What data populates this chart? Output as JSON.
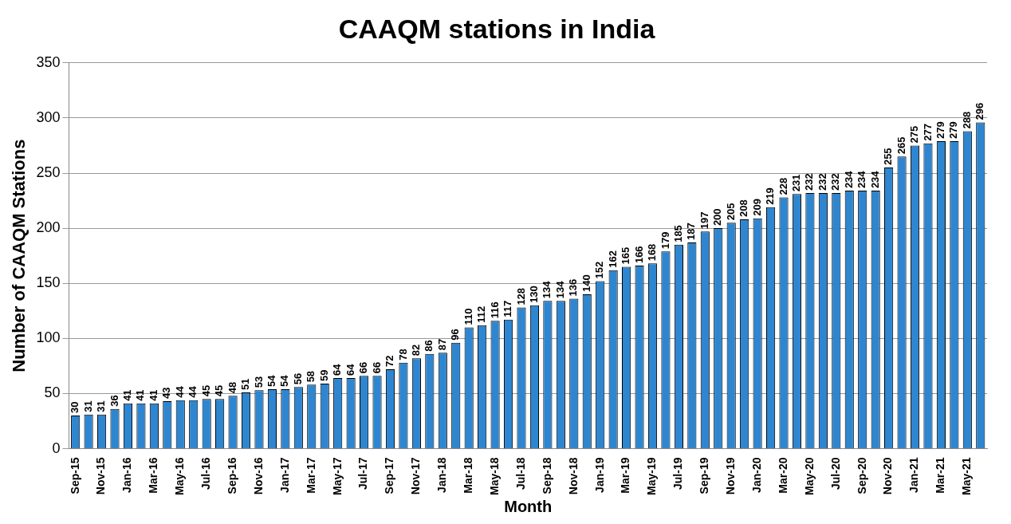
{
  "chart_data": {
    "type": "bar",
    "title": "CAAQM stations in India",
    "xlabel": "Month",
    "ylabel": "Number of CAAQM Stations",
    "categories": [
      "Sep-15",
      null,
      "Nov-15",
      null,
      "Jan-16",
      null,
      "Mar-16",
      null,
      "May-16",
      null,
      "Jul-16",
      null,
      "Sep-16",
      null,
      "Nov-16",
      null,
      "Jan-17",
      null,
      "Mar-17",
      null,
      "May-17",
      null,
      "Jul-17",
      null,
      "Sep-17",
      null,
      "Nov-17",
      null,
      "Jan-18",
      null,
      "Mar-18",
      null,
      "May-18",
      null,
      "Jul-18",
      null,
      "Sep-18",
      null,
      "Nov-18",
      null,
      "Jan-19",
      null,
      "Mar-19",
      null,
      "May-19",
      null,
      "Jul-19",
      null,
      "Sep-19",
      null,
      "Nov-19",
      null,
      "Jan-20",
      null,
      "Mar-20",
      null,
      "May-20",
      null,
      "Jul-20",
      null,
      "Sep-20",
      null,
      "Nov-20",
      null,
      "Jan-21",
      null,
      "Mar-21",
      null,
      "May-21",
      null
    ],
    "values": [
      30,
      31,
      31,
      36,
      41,
      41,
      41,
      43,
      44,
      44,
      45,
      45,
      48,
      51,
      53,
      54,
      54,
      56,
      58,
      59,
      64,
      64,
      66,
      66,
      72,
      78,
      82,
      86,
      87,
      96,
      110,
      112,
      116,
      117,
      128,
      130,
      134,
      134,
      136,
      140,
      152,
      162,
      165,
      166,
      168,
      179,
      185,
      187,
      197,
      200,
      205,
      208,
      209,
      219,
      228,
      231,
      232,
      232,
      232,
      234,
      234,
      234,
      255,
      265,
      275,
      277,
      279,
      279,
      288,
      296
    ],
    "color": "#2f86d0",
    "ylim": [
      0,
      350
    ],
    "yticks": [
      0,
      50,
      100,
      150,
      200,
      250,
      300,
      350
    ],
    "grid": "y",
    "data_labels": true
  }
}
